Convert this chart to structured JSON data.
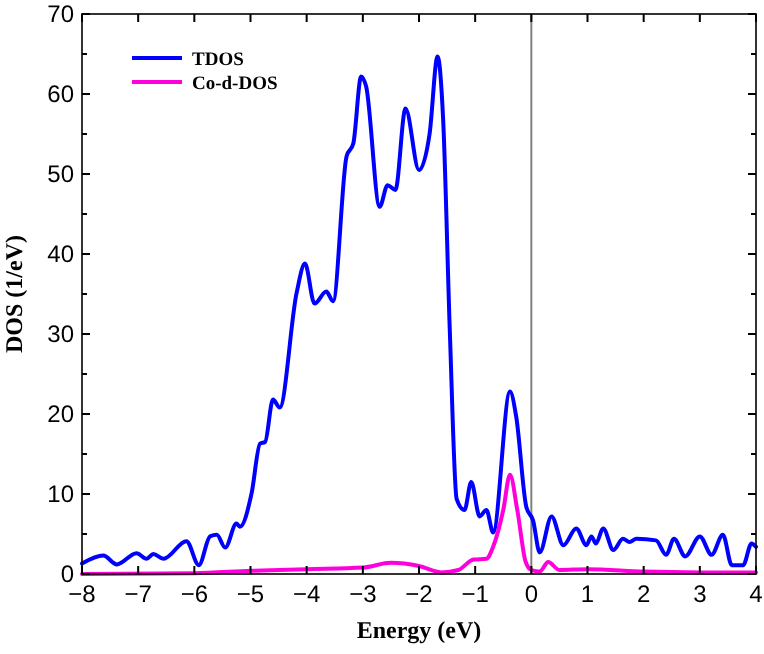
{
  "chart_data": {
    "type": "line",
    "xlabel": "Energy (eV)",
    "ylabel": "DOS (1/eV)",
    "xlim": [
      -8,
      4
    ],
    "xticks": [
      -8,
      -7,
      -6,
      -5,
      -4,
      -3,
      -2,
      -1,
      0,
      1,
      2,
      3,
      4
    ],
    "ylim": [
      0,
      70
    ],
    "yticks": [
      0,
      {
        "value": 5,
        "label": null
      },
      10,
      {
        "value": 15,
        "label": null
      },
      20,
      {
        "value": 25,
        "label": null
      },
      30,
      {
        "value": 35,
        "label": null
      },
      40,
      {
        "value": 45,
        "label": null
      },
      50,
      {
        "value": 55,
        "label": null
      },
      60,
      {
        "value": 65,
        "label": null
      },
      70
    ],
    "legend": "top left",
    "line_style": "solid",
    "ref_lines": [
      {
        "axis": "x",
        "value": 0,
        "color": "#808080"
      }
    ],
    "series": [
      {
        "name": "TDOS",
        "color": "#0000ff",
        "x": [
          -8,
          -7.62,
          -7.38,
          -7.03,
          -6.85,
          -6.73,
          -6.55,
          -6.14,
          -5.92,
          -5.72,
          -5.6,
          -5.45,
          -5.25,
          -5.19,
          -4.98,
          -4.83,
          -4.74,
          -4.6,
          -4.48,
          -4.18,
          -4.03,
          -3.86,
          -3.65,
          -3.53,
          -3.29,
          -3.17,
          -3.03,
          -2.94,
          -2.7,
          -2.56,
          -2.42,
          -2.24,
          -2.0,
          -1.81,
          -1.67,
          -1.57,
          -1.45,
          -1.33,
          -1.19,
          -1.07,
          -0.92,
          -0.8,
          -0.68,
          -0.38,
          -0.27,
          -0.09,
          0.03,
          0.15,
          0.36,
          0.57,
          0.8,
          0.98,
          1.07,
          1.15,
          1.28,
          1.46,
          1.63,
          1.75,
          1.87,
          2.22,
          2.4,
          2.54,
          2.74,
          3.0,
          3.21,
          3.41,
          3.57,
          3.77,
          3.92,
          4.0
        ],
        "values": [
          1.3,
          2.3,
          1.2,
          2.6,
          1.9,
          2.5,
          1.9,
          4.1,
          1.1,
          4.7,
          4.9,
          3.3,
          6.3,
          5.9,
          10.1,
          16.3,
          16.5,
          21.8,
          20.8,
          35.1,
          38.8,
          33.8,
          35.3,
          34.1,
          52.2,
          53.8,
          62.2,
          60.9,
          45.9,
          48.6,
          48,
          58.2,
          50.5,
          55.1,
          64.7,
          56.8,
          30.1,
          9.4,
          8,
          11.5,
          7.2,
          8,
          5.2,
          22.8,
          19.7,
          8.4,
          6.7,
          2.7,
          7.2,
          3.6,
          5.7,
          3.6,
          4.7,
          3.8,
          5.7,
          3,
          4.4,
          4,
          4.4,
          4.2,
          2.4,
          4.4,
          2.2,
          4.7,
          2.4,
          4.9,
          1.1,
          1.1,
          3.8,
          3.4
        ]
      },
      {
        "name": "Co-d-DOS",
        "color": "#ff00dd",
        "x": [
          -8,
          -6,
          -5,
          -4,
          -3,
          -2.5,
          -2,
          -1.6,
          -1.3,
          -1.03,
          -0.8,
          -0.68,
          -0.5,
          -0.38,
          -0.25,
          -0.1,
          0,
          0.15,
          0.3,
          0.5,
          1,
          2,
          3,
          4
        ],
        "values": [
          0,
          0.1,
          0.4,
          0.6,
          0.8,
          1.4,
          1,
          0.2,
          0.5,
          1.8,
          1.9,
          3.4,
          8,
          12.4,
          8,
          1.5,
          0.5,
          0.3,
          1.5,
          0.5,
          0.6,
          0.3,
          0.2,
          0.2
        ]
      }
    ]
  }
}
